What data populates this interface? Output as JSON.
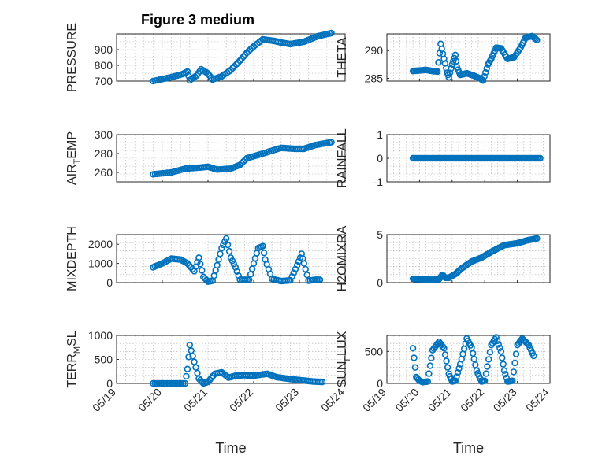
{
  "figure": {
    "title": "Figure 3 medium"
  },
  "chart_data": [
    {
      "type": "scatter",
      "name": "PRESSURE",
      "title": "Figure 3 medium",
      "ylabel": "PRESSURE",
      "xlabel": "",
      "ylim": [
        700,
        1000
      ],
      "yticks": [
        700,
        800,
        900
      ],
      "xlim": [
        0,
        5
      ],
      "color": "#0072bd",
      "grid": true,
      "curve": [
        [
          0.8,
          700
        ],
        [
          1.2,
          725
        ],
        [
          1.45,
          745
        ],
        [
          1.55,
          760
        ],
        [
          1.6,
          705
        ],
        [
          1.75,
          735
        ],
        [
          1.85,
          775
        ],
        [
          2.0,
          748
        ],
        [
          2.1,
          710
        ],
        [
          2.3,
          730
        ],
        [
          2.5,
          770
        ],
        [
          2.7,
          830
        ],
        [
          2.85,
          880
        ],
        [
          3.0,
          920
        ],
        [
          3.2,
          965
        ],
        [
          3.45,
          955
        ],
        [
          3.6,
          945
        ],
        [
          3.8,
          935
        ],
        [
          4.1,
          950
        ],
        [
          4.4,
          985
        ],
        [
          4.7,
          1005
        ]
      ]
    },
    {
      "type": "scatter",
      "name": "THETA",
      "ylabel": "THETA",
      "xlabel": "",
      "ylim": [
        284.5,
        293
      ],
      "yticks": [
        285,
        290
      ],
      "xlim": [
        0,
        5
      ],
      "color": "#0072bd",
      "grid": true,
      "curve": [
        [
          0.8,
          286.3
        ],
        [
          1.2,
          286.5
        ],
        [
          1.4,
          286.3
        ],
        [
          1.55,
          286.2
        ],
        [
          1.65,
          291.2
        ],
        [
          1.75,
          288.5
        ],
        [
          1.85,
          286.0
        ],
        [
          1.9,
          285.2
        ],
        [
          2.0,
          287.5
        ],
        [
          2.1,
          289.2
        ],
        [
          2.15,
          287.0
        ],
        [
          2.25,
          285.6
        ],
        [
          2.45,
          285.9
        ],
        [
          2.65,
          285.5
        ],
        [
          2.85,
          285.0
        ],
        [
          2.95,
          284.6
        ],
        [
          3.1,
          287.5
        ],
        [
          3.2,
          288.5
        ],
        [
          3.35,
          290.5
        ],
        [
          3.5,
          290.4
        ],
        [
          3.7,
          288.5
        ],
        [
          3.9,
          288.8
        ],
        [
          4.1,
          290.5
        ],
        [
          4.25,
          292.3
        ],
        [
          4.45,
          292.6
        ],
        [
          4.6,
          291.9
        ]
      ]
    },
    {
      "type": "scatter",
      "name": "AIR_TEMP",
      "ylabel": "AIR_TEMP",
      "xlabel": "",
      "ylim": [
        250,
        300
      ],
      "yticks": [
        260,
        280,
        300
      ],
      "xlim": [
        0,
        5
      ],
      "color": "#0072bd",
      "grid": true,
      "curve": [
        [
          0.8,
          258
        ],
        [
          1.2,
          260
        ],
        [
          1.5,
          264
        ],
        [
          1.8,
          265
        ],
        [
          2.0,
          266
        ],
        [
          2.2,
          263
        ],
        [
          2.5,
          264
        ],
        [
          2.7,
          268
        ],
        [
          2.85,
          275
        ],
        [
          3.2,
          280
        ],
        [
          3.6,
          286
        ],
        [
          3.9,
          285
        ],
        [
          4.1,
          285
        ],
        [
          4.35,
          289
        ],
        [
          4.7,
          292
        ]
      ]
    },
    {
      "type": "scatter",
      "name": "RAINFALL",
      "ylabel": "RAINFALL",
      "xlabel": "",
      "ylim": [
        -1,
        1
      ],
      "yticks": [
        -1,
        0,
        1
      ],
      "xlim": [
        0,
        5
      ],
      "color": "#0072bd",
      "grid": true,
      "curve": [
        [
          0.8,
          0
        ],
        [
          4.7,
          0
        ]
      ]
    },
    {
      "type": "scatter",
      "name": "MIXDEPTH",
      "ylabel": "MIXDEPTH",
      "xlabel": "",
      "ylim": [
        0,
        2500
      ],
      "yticks": [
        0,
        1000,
        2000
      ],
      "xlim": [
        0,
        5
      ],
      "color": "#0072bd",
      "grid": true,
      "curve": [
        [
          0.8,
          800
        ],
        [
          1.0,
          1000
        ],
        [
          1.2,
          1250
        ],
        [
          1.4,
          1200
        ],
        [
          1.55,
          1000
        ],
        [
          1.7,
          600
        ],
        [
          1.8,
          1300
        ],
        [
          1.9,
          300
        ],
        [
          2.0,
          50
        ],
        [
          2.1,
          100
        ],
        [
          2.2,
          900
        ],
        [
          2.3,
          1800
        ],
        [
          2.4,
          2300
        ],
        [
          2.5,
          1300
        ],
        [
          2.6,
          800
        ],
        [
          2.7,
          150
        ],
        [
          2.9,
          150
        ],
        [
          3.0,
          1000
        ],
        [
          3.1,
          1800
        ],
        [
          3.2,
          1900
        ],
        [
          3.25,
          1200
        ],
        [
          3.4,
          200
        ],
        [
          3.6,
          80
        ],
        [
          3.8,
          120
        ],
        [
          3.95,
          900
        ],
        [
          4.05,
          1500
        ],
        [
          4.1,
          1000
        ],
        [
          4.2,
          100
        ],
        [
          4.35,
          150
        ],
        [
          4.45,
          150
        ]
      ]
    },
    {
      "type": "scatter",
      "name": "H2OMIXRA",
      "ylabel": "H2OMIXRA",
      "xlabel": "",
      "ylim": [
        0,
        5
      ],
      "yticks": [
        0,
        5
      ],
      "xlim": [
        0,
        5
      ],
      "color": "#0072bd",
      "grid": true,
      "curve": [
        [
          0.8,
          0.4
        ],
        [
          1.0,
          0.35
        ],
        [
          1.4,
          0.3
        ],
        [
          1.6,
          0.35
        ],
        [
          1.7,
          0.8
        ],
        [
          1.8,
          0.5
        ],
        [
          1.9,
          0.5
        ],
        [
          2.1,
          0.9
        ],
        [
          2.3,
          1.5
        ],
        [
          2.6,
          2.2
        ],
        [
          2.9,
          2.6
        ],
        [
          3.2,
          3.2
        ],
        [
          3.6,
          3.9
        ],
        [
          4.0,
          4.1
        ],
        [
          4.3,
          4.4
        ],
        [
          4.6,
          4.6
        ]
      ]
    },
    {
      "type": "scatter",
      "name": "TERR_MSL",
      "ylabel": "TERR_MSL",
      "xlabel": "Time",
      "ylim": [
        0,
        1000
      ],
      "yticks": [
        0,
        500,
        1000
      ],
      "xlim": [
        0,
        5
      ],
      "xticks": [
        "05/19",
        "05/20",
        "05/21",
        "05/22",
        "05/23",
        "05/24"
      ],
      "color": "#0072bd",
      "grid": true,
      "curve": [
        [
          0.8,
          0
        ],
        [
          1.5,
          0
        ],
        [
          1.55,
          300
        ],
        [
          1.6,
          800
        ],
        [
          1.7,
          450
        ],
        [
          1.8,
          100
        ],
        [
          1.9,
          0
        ],
        [
          2.0,
          30
        ],
        [
          2.15,
          200
        ],
        [
          2.3,
          230
        ],
        [
          2.45,
          120
        ],
        [
          2.6,
          160
        ],
        [
          2.8,
          170
        ],
        [
          3.0,
          160
        ],
        [
          3.3,
          200
        ],
        [
          3.5,
          130
        ],
        [
          3.8,
          90
        ],
        [
          4.1,
          60
        ],
        [
          4.3,
          40
        ],
        [
          4.5,
          30
        ]
      ]
    },
    {
      "type": "scatter",
      "name": "SUN_FLUX",
      "ylabel": "SUN_FLUX",
      "xlabel": "Time",
      "ylim": [
        0,
        750
      ],
      "yticks": [
        0,
        500
      ],
      "xlim": [
        0,
        5
      ],
      "xticks": [
        "05/19",
        "05/20",
        "05/21",
        "05/22",
        "05/23",
        "05/24"
      ],
      "color": "#0072bd",
      "grid": true,
      "curve": [
        [
          0.8,
          550
        ],
        [
          0.9,
          100
        ],
        [
          1.0,
          40
        ],
        [
          1.1,
          20
        ],
        [
          1.25,
          30
        ],
        [
          1.4,
          520
        ],
        [
          1.6,
          650
        ],
        [
          1.75,
          550
        ],
        [
          1.9,
          150
        ],
        [
          2.0,
          30
        ],
        [
          2.1,
          40
        ],
        [
          2.25,
          300
        ],
        [
          2.45,
          700
        ],
        [
          2.6,
          560
        ],
        [
          2.75,
          200
        ],
        [
          2.9,
          30
        ],
        [
          3.0,
          40
        ],
        [
          3.2,
          600
        ],
        [
          3.35,
          720
        ],
        [
          3.5,
          500
        ],
        [
          3.6,
          200
        ],
        [
          3.7,
          30
        ],
        [
          3.85,
          40
        ],
        [
          4.0,
          600
        ],
        [
          4.15,
          700
        ],
        [
          4.35,
          600
        ],
        [
          4.5,
          430
        ]
      ]
    }
  ]
}
